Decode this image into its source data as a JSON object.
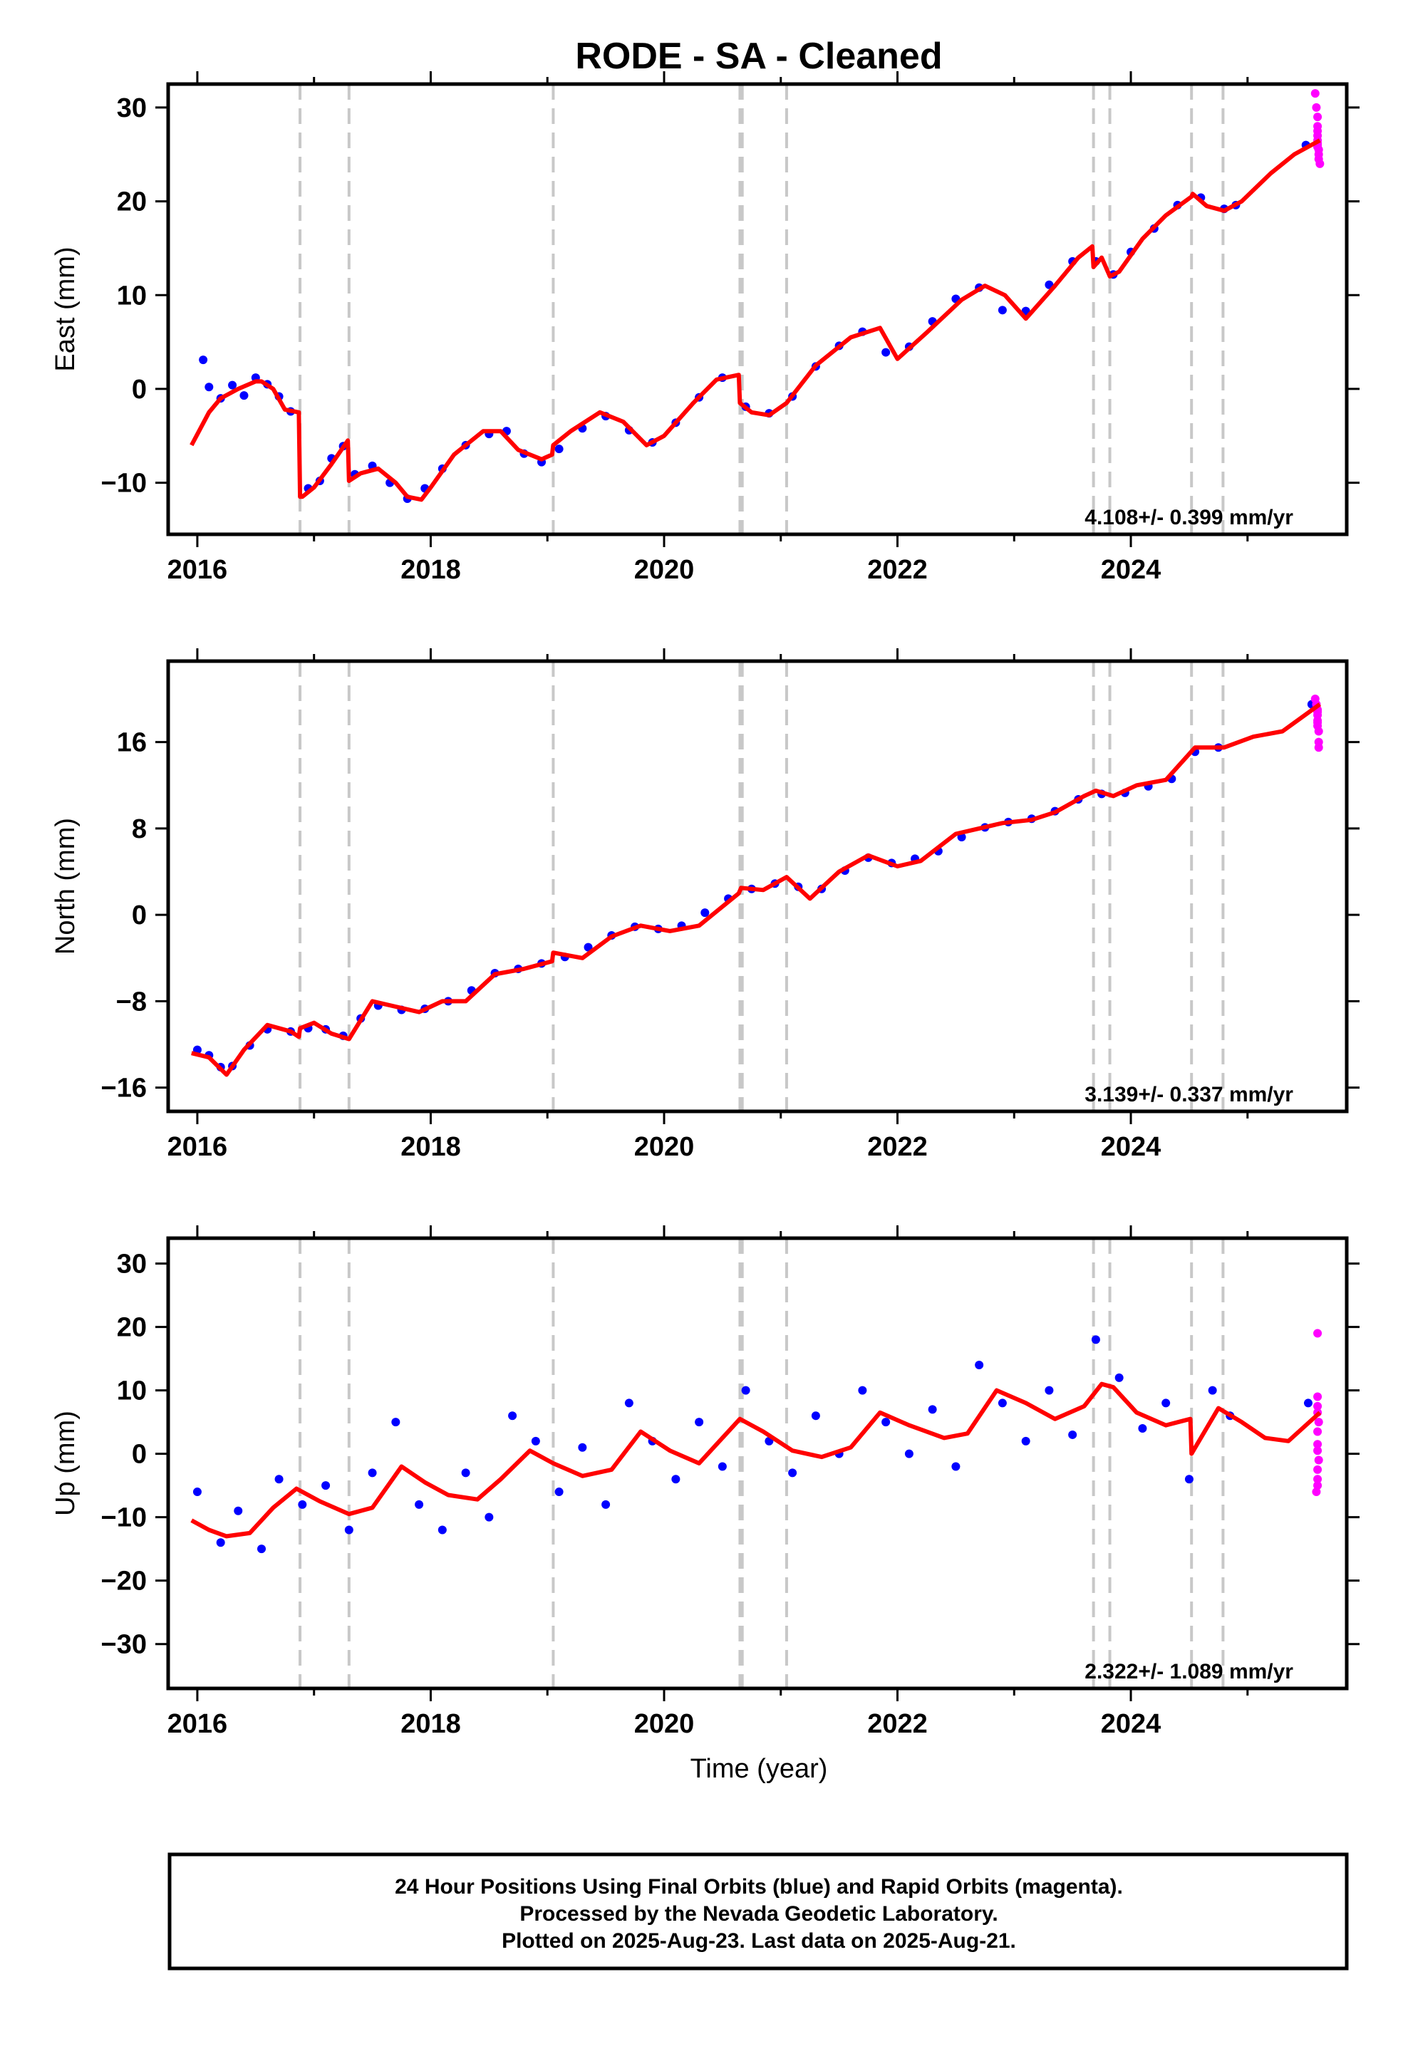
{
  "title": "RODE  - SA - Cleaned",
  "xlabel": "Time (year)",
  "footer": [
    "24 Hour Positions Using Final Orbits (blue) and Rapid Orbits (magenta).",
    "Processed by the Nevada Geodetic Laboratory.",
    "Plotted on 2025-Aug-23. Last data on 2025-Aug-21."
  ],
  "colors": {
    "final": "#0000ff",
    "rapid": "#ff00ff",
    "model": "#ff0000",
    "event": "#c8c8c8",
    "frame": "#000000"
  },
  "chart_data": [
    {
      "type": "scatter",
      "ylabel": "East (mm)",
      "rate": "4.108+/- 0.399 mm/yr",
      "xlim": [
        2015.75,
        2025.85
      ],
      "ylim": [
        -15.5,
        32.5
      ],
      "xticks": [
        2016,
        2018,
        2020,
        2022,
        2024
      ],
      "yticks": [
        -10,
        0,
        10,
        20,
        30
      ],
      "event_lines": [
        2016.88,
        2017.3,
        2019.05,
        2020.65,
        2020.67,
        2021.05,
        2023.68,
        2023.82,
        2024.52,
        2024.79
      ],
      "model_x": [
        2015.95,
        2016.1,
        2016.2,
        2016.35,
        2016.5,
        2016.55,
        2016.65,
        2016.75,
        2016.87,
        2016.88,
        2016.9,
        2017.0,
        2017.15,
        2017.29,
        2017.3,
        2017.4,
        2017.55,
        2017.7,
        2017.8,
        2017.92,
        2018.0,
        2018.2,
        2018.45,
        2018.6,
        2018.75,
        2018.95,
        2019.04,
        2019.05,
        2019.2,
        2019.45,
        2019.65,
        2019.85,
        2020.0,
        2020.25,
        2020.45,
        2020.64,
        2020.65,
        2020.75,
        2020.9,
        2021.05,
        2021.3,
        2021.6,
        2021.85,
        2022.0,
        2022.25,
        2022.55,
        2022.75,
        2022.92,
        2023.1,
        2023.35,
        2023.55,
        2023.67,
        2023.68,
        2023.75,
        2023.82,
        2023.9,
        2024.1,
        2024.3,
        2024.52,
        2024.53,
        2024.65,
        2024.8,
        2024.95,
        2025.2,
        2025.4,
        2025.62
      ],
      "model_y": [
        -6,
        -2.5,
        -1,
        0,
        0.8,
        0.8,
        0,
        -2.2,
        -2.5,
        -11.5,
        -11.5,
        -10.5,
        -8,
        -5.5,
        -9.8,
        -9,
        -8.5,
        -10,
        -11.5,
        -11.8,
        -10.5,
        -7,
        -4.5,
        -4.5,
        -6.5,
        -7.5,
        -7,
        -6,
        -4.5,
        -2.5,
        -3.5,
        -6,
        -5,
        -1.5,
        1,
        1.5,
        -1.5,
        -2.5,
        -2.8,
        -1.5,
        2.5,
        5.5,
        6.5,
        3.2,
        6,
        9.5,
        11,
        10,
        7.5,
        11,
        14,
        15.2,
        13,
        14,
        12,
        12.5,
        16,
        18.5,
        20.5,
        20.8,
        19.5,
        19,
        20,
        23,
        25,
        26.5
      ],
      "final": [
        [
          2016.05,
          3.1
        ],
        [
          2016.1,
          0.2
        ],
        [
          2016.2,
          -1.0
        ],
        [
          2016.3,
          0.4
        ],
        [
          2016.4,
          -0.7
        ],
        [
          2016.5,
          1.2
        ],
        [
          2016.6,
          0.5
        ],
        [
          2016.7,
          -0.8
        ],
        [
          2016.8,
          -2.4
        ],
        [
          2016.95,
          -10.6
        ],
        [
          2017.05,
          -9.8
        ],
        [
          2017.15,
          -7.4
        ],
        [
          2017.25,
          -6.1
        ],
        [
          2017.35,
          -9.1
        ],
        [
          2017.5,
          -8.2
        ],
        [
          2017.65,
          -10.0
        ],
        [
          2017.8,
          -11.7
        ],
        [
          2017.95,
          -10.6
        ],
        [
          2018.1,
          -8.5
        ],
        [
          2018.3,
          -6.0
        ],
        [
          2018.5,
          -4.8
        ],
        [
          2018.65,
          -4.5
        ],
        [
          2018.8,
          -6.9
        ],
        [
          2018.95,
          -7.8
        ],
        [
          2019.1,
          -6.4
        ],
        [
          2019.3,
          -4.2
        ],
        [
          2019.5,
          -2.9
        ],
        [
          2019.7,
          -4.4
        ],
        [
          2019.9,
          -5.7
        ],
        [
          2020.1,
          -3.6
        ],
        [
          2020.3,
          -0.9
        ],
        [
          2020.5,
          1.2
        ],
        [
          2020.7,
          -1.9
        ],
        [
          2020.9,
          -2.6
        ],
        [
          2021.1,
          -0.8
        ],
        [
          2021.3,
          2.4
        ],
        [
          2021.5,
          4.6
        ],
        [
          2021.7,
          6.1
        ],
        [
          2021.9,
          3.9
        ],
        [
          2022.1,
          4.5
        ],
        [
          2022.3,
          7.2
        ],
        [
          2022.5,
          9.6
        ],
        [
          2022.7,
          10.8
        ],
        [
          2022.9,
          8.4
        ],
        [
          2023.1,
          8.3
        ],
        [
          2023.3,
          11.1
        ],
        [
          2023.5,
          13.6
        ],
        [
          2023.7,
          13.6
        ],
        [
          2023.85,
          12.2
        ],
        [
          2024.0,
          14.6
        ],
        [
          2024.2,
          17.1
        ],
        [
          2024.4,
          19.6
        ],
        [
          2024.6,
          20.4
        ],
        [
          2024.8,
          19.2
        ],
        [
          2024.9,
          19.6
        ],
        [
          2025.5,
          26.0
        ]
      ],
      "rapid": [
        [
          2025.58,
          31.5
        ],
        [
          2025.59,
          30.0
        ],
        [
          2025.6,
          29.0
        ],
        [
          2025.6,
          28.0
        ],
        [
          2025.6,
          27.0
        ],
        [
          2025.6,
          26.5
        ],
        [
          2025.6,
          26.0
        ],
        [
          2025.61,
          25.5
        ],
        [
          2025.61,
          25.0
        ],
        [
          2025.61,
          24.5
        ],
        [
          2025.62,
          24.0
        ],
        [
          2025.6,
          27.5
        ],
        [
          2025.6,
          26.2
        ],
        [
          2025.6,
          25.8
        ]
      ]
    },
    {
      "type": "scatter",
      "ylabel": "North (mm)",
      "rate": "3.139+/- 0.337 mm/yr",
      "xlim": [
        2015.75,
        2025.85
      ],
      "ylim": [
        -18.2,
        23.5
      ],
      "xticks": [
        2016,
        2018,
        2020,
        2022,
        2024
      ],
      "yticks": [
        -16,
        -8,
        0,
        8,
        16
      ],
      "event_lines": [
        2016.88,
        2017.3,
        2019.05,
        2020.65,
        2020.67,
        2021.05,
        2023.68,
        2023.82,
        2024.52,
        2024.79
      ],
      "model_x": [
        2015.95,
        2016.1,
        2016.25,
        2016.4,
        2016.6,
        2016.8,
        2016.87,
        2016.88,
        2017.0,
        2017.15,
        2017.3,
        2017.5,
        2017.7,
        2017.9,
        2018.1,
        2018.3,
        2018.55,
        2018.8,
        2019.04,
        2019.05,
        2019.3,
        2019.55,
        2019.8,
        2020.05,
        2020.3,
        2020.64,
        2020.66,
        2020.85,
        2021.05,
        2021.25,
        2021.5,
        2021.75,
        2022.0,
        2022.2,
        2022.5,
        2022.7,
        2022.9,
        2023.15,
        2023.35,
        2023.6,
        2023.7,
        2023.85,
        2024.05,
        2024.3,
        2024.55,
        2024.8,
        2025.05,
        2025.3,
        2025.62
      ],
      "model_y": [
        -12.8,
        -13.2,
        -14.8,
        -12.5,
        -10.2,
        -10.8,
        -11.3,
        -10.5,
        -10.0,
        -11.0,
        -11.5,
        -8.0,
        -8.5,
        -9.0,
        -8.0,
        -8.0,
        -5.5,
        -5.0,
        -4.3,
        -3.5,
        -4.0,
        -2.0,
        -1.0,
        -1.5,
        -1.0,
        2.0,
        2.5,
        2.3,
        3.5,
        1.5,
        4.0,
        5.5,
        4.5,
        5.0,
        7.5,
        8.0,
        8.5,
        8.8,
        9.5,
        11.0,
        11.5,
        11.0,
        12.0,
        12.5,
        15.5,
        15.5,
        16.5,
        17.0,
        19.5
      ],
      "final": [
        [
          2016.0,
          -12.5
        ],
        [
          2016.1,
          -13.0
        ],
        [
          2016.2,
          -14.1
        ],
        [
          2016.3,
          -14.0
        ],
        [
          2016.45,
          -12.1
        ],
        [
          2016.6,
          -10.6
        ],
        [
          2016.8,
          -10.8
        ],
        [
          2016.95,
          -10.5
        ],
        [
          2017.1,
          -10.6
        ],
        [
          2017.25,
          -11.2
        ],
        [
          2017.4,
          -9.6
        ],
        [
          2017.55,
          -8.4
        ],
        [
          2017.75,
          -8.8
        ],
        [
          2017.95,
          -8.7
        ],
        [
          2018.15,
          -8.0
        ],
        [
          2018.35,
          -7.0
        ],
        [
          2018.55,
          -5.4
        ],
        [
          2018.75,
          -5.0
        ],
        [
          2018.95,
          -4.5
        ],
        [
          2019.15,
          -3.9
        ],
        [
          2019.35,
          -3.0
        ],
        [
          2019.55,
          -1.9
        ],
        [
          2019.75,
          -1.1
        ],
        [
          2019.95,
          -1.3
        ],
        [
          2020.15,
          -1.0
        ],
        [
          2020.35,
          0.2
        ],
        [
          2020.55,
          1.5
        ],
        [
          2020.75,
          2.4
        ],
        [
          2020.95,
          2.9
        ],
        [
          2021.15,
          2.6
        ],
        [
          2021.35,
          2.4
        ],
        [
          2021.55,
          4.1
        ],
        [
          2021.75,
          5.3
        ],
        [
          2021.95,
          4.8
        ],
        [
          2022.15,
          5.2
        ],
        [
          2022.35,
          5.9
        ],
        [
          2022.55,
          7.2
        ],
        [
          2022.75,
          8.1
        ],
        [
          2022.95,
          8.6
        ],
        [
          2023.15,
          8.9
        ],
        [
          2023.35,
          9.6
        ],
        [
          2023.55,
          10.7
        ],
        [
          2023.75,
          11.2
        ],
        [
          2023.95,
          11.3
        ],
        [
          2024.15,
          11.9
        ],
        [
          2024.35,
          12.6
        ],
        [
          2024.55,
          15.1
        ],
        [
          2024.75,
          15.5
        ],
        [
          2025.55,
          19.5
        ]
      ],
      "rapid": [
        [
          2025.58,
          20.0
        ],
        [
          2025.59,
          19.5
        ],
        [
          2025.6,
          19.0
        ],
        [
          2025.6,
          18.5
        ],
        [
          2025.6,
          18.0
        ],
        [
          2025.6,
          17.5
        ],
        [
          2025.61,
          17.0
        ],
        [
          2025.61,
          16.0
        ],
        [
          2025.61,
          15.5
        ],
        [
          2025.6,
          18.8
        ],
        [
          2025.6,
          17.8
        ]
      ]
    },
    {
      "type": "scatter",
      "ylabel": "Up (mm)",
      "rate": "2.322+/- 1.089 mm/yr",
      "xlim": [
        2015.75,
        2025.85
      ],
      "ylim": [
        -37,
        34
      ],
      "xticks": [
        2016,
        2018,
        2020,
        2022,
        2024
      ],
      "yticks": [
        -30,
        -20,
        -10,
        0,
        10,
        20,
        30
      ],
      "event_lines": [
        2016.88,
        2017.3,
        2019.05,
        2020.65,
        2020.67,
        2021.05,
        2023.68,
        2023.82,
        2024.52,
        2024.79
      ],
      "model_x": [
        2015.95,
        2016.1,
        2016.25,
        2016.45,
        2016.65,
        2016.85,
        2017.05,
        2017.3,
        2017.5,
        2017.75,
        2017.95,
        2018.15,
        2018.4,
        2018.6,
        2018.85,
        2019.05,
        2019.3,
        2019.55,
        2019.8,
        2020.05,
        2020.3,
        2020.65,
        2020.85,
        2021.1,
        2021.35,
        2021.6,
        2021.85,
        2022.1,
        2022.4,
        2022.6,
        2022.85,
        2023.1,
        2023.35,
        2023.6,
        2023.75,
        2023.85,
        2024.05,
        2024.3,
        2024.51,
        2024.52,
        2024.75,
        2024.95,
        2025.15,
        2025.35,
        2025.62
      ],
      "model_y": [
        -10.5,
        -12,
        -13,
        -12.5,
        -8.5,
        -5.5,
        -7.5,
        -9.5,
        -8.5,
        -2,
        -4.5,
        -6.5,
        -7.2,
        -4,
        0.5,
        -1.5,
        -3.5,
        -2.5,
        3.5,
        0.5,
        -1.5,
        5.5,
        3.5,
        0.5,
        -0.5,
        1,
        6.5,
        4.5,
        2.5,
        3.2,
        10,
        8,
        5.5,
        7.5,
        11,
        10.5,
        6.5,
        4.5,
        5.5,
        0,
        7.2,
        5,
        2.5,
        2,
        6.5
      ],
      "final": [
        [
          2016.0,
          -6.0
        ],
        [
          2016.2,
          -14.0
        ],
        [
          2016.35,
          -9.0
        ],
        [
          2016.55,
          -15.0
        ],
        [
          2016.7,
          -4.0
        ],
        [
          2016.9,
          -8.0
        ],
        [
          2017.1,
          -5.0
        ],
        [
          2017.3,
          -12.0
        ],
        [
          2017.5,
          -3.0
        ],
        [
          2017.7,
          5.0
        ],
        [
          2017.9,
          -8.0
        ],
        [
          2018.1,
          -12.0
        ],
        [
          2018.3,
          -3.0
        ],
        [
          2018.5,
          -10.0
        ],
        [
          2018.7,
          6.0
        ],
        [
          2018.9,
          2.0
        ],
        [
          2019.1,
          -6.0
        ],
        [
          2019.3,
          1.0
        ],
        [
          2019.5,
          -8.0
        ],
        [
          2019.7,
          8.0
        ],
        [
          2019.9,
          2.0
        ],
        [
          2020.1,
          -4.0
        ],
        [
          2020.3,
          5.0
        ],
        [
          2020.5,
          -2.0
        ],
        [
          2020.7,
          10.0
        ],
        [
          2020.9,
          2.0
        ],
        [
          2021.1,
          -3.0
        ],
        [
          2021.3,
          6.0
        ],
        [
          2021.5,
          0.0
        ],
        [
          2021.7,
          10.0
        ],
        [
          2021.9,
          5.0
        ],
        [
          2022.1,
          0.0
        ],
        [
          2022.3,
          7.0
        ],
        [
          2022.5,
          -2.0
        ],
        [
          2022.7,
          14.0
        ],
        [
          2022.9,
          8.0
        ],
        [
          2023.1,
          2.0
        ],
        [
          2023.3,
          10.0
        ],
        [
          2023.5,
          3.0
        ],
        [
          2023.7,
          18.0
        ],
        [
          2023.9,
          12.0
        ],
        [
          2024.1,
          4.0
        ],
        [
          2024.3,
          8.0
        ],
        [
          2024.5,
          -4.0
        ],
        [
          2024.7,
          10.0
        ],
        [
          2024.85,
          6.0
        ],
        [
          2025.52,
          8.0
        ]
      ],
      "rapid": [
        [
          2025.6,
          19.0
        ],
        [
          2025.6,
          9.0
        ],
        [
          2025.6,
          7.5
        ],
        [
          2025.6,
          6.5
        ],
        [
          2025.61,
          5.0
        ],
        [
          2025.6,
          3.5
        ],
        [
          2025.6,
          1.5
        ],
        [
          2025.6,
          0.5
        ],
        [
          2025.61,
          -1.0
        ],
        [
          2025.6,
          -2.5
        ],
        [
          2025.6,
          -4.0
        ],
        [
          2025.6,
          -5.0
        ],
        [
          2025.59,
          -6.0
        ]
      ]
    }
  ]
}
